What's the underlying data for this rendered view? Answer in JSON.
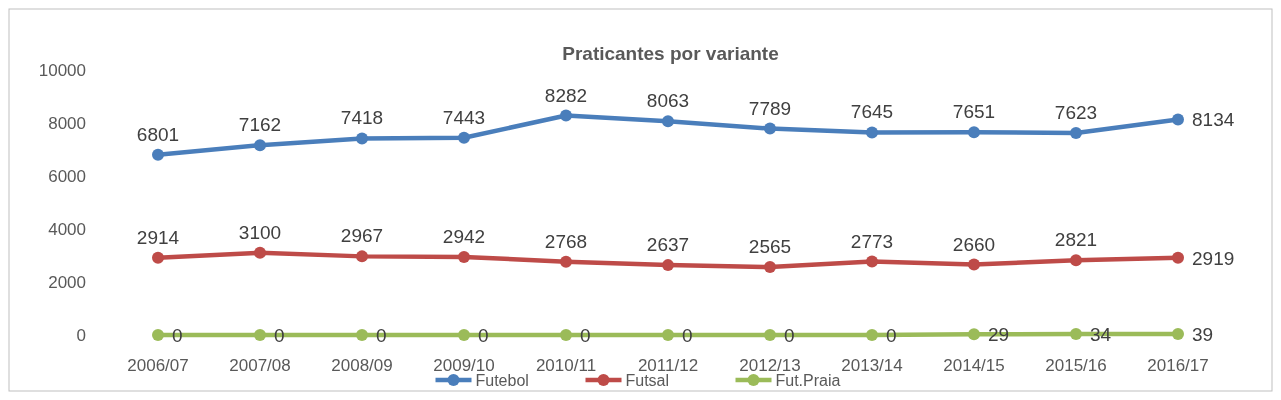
{
  "chart_data": {
    "type": "line",
    "title": "Praticantes por variante",
    "categories": [
      "2006/07",
      "2007/08",
      "2008/09",
      "2009/10",
      "2010/11",
      "2011/12",
      "2012/13",
      "2013/14",
      "2014/15",
      "2015/16",
      "2016/17"
    ],
    "series": [
      {
        "name": "Futebol",
        "color": "#4a7ebb",
        "values": [
          6801,
          7162,
          7418,
          7443,
          8282,
          8063,
          7789,
          7645,
          7651,
          7623,
          8134
        ]
      },
      {
        "name": "Futsal",
        "color": "#be4b48",
        "values": [
          2914,
          3100,
          2967,
          2942,
          2768,
          2637,
          2565,
          2773,
          2660,
          2821,
          2919
        ]
      },
      {
        "name": "Fut.Praia",
        "color": "#9bbb59",
        "values": [
          0,
          0,
          0,
          0,
          0,
          0,
          0,
          0,
          29,
          34,
          39
        ]
      }
    ],
    "ylim": [
      0,
      10000
    ],
    "yticks": [
      0,
      2000,
      4000,
      6000,
      8000,
      10000
    ],
    "grid": false,
    "legend": "bottom",
    "marker": "circle",
    "line_style": "solid",
    "data_labels": true
  }
}
